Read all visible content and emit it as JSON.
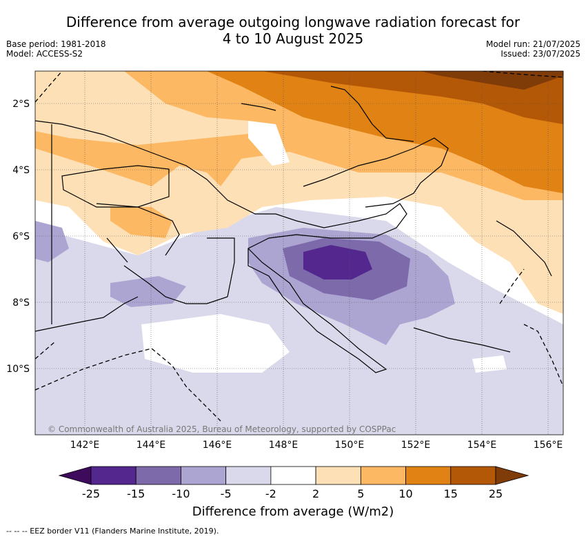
{
  "title_line1": "Difference from average outgoing longwave radiation forecast for",
  "title_line2": "4 to 10 August 2025",
  "base_period": "Base period: 1981-2018",
  "model": "Model: ACCESS-S2",
  "model_run": "Model run: 21/07/2025",
  "issued": "Issued: 23/07/2025",
  "copyright": "© Commonwealth of Australia 2025, Bureau of Meteorology, supported by COSPPac",
  "lat_labels": [
    "2°S",
    "4°S",
    "6°S",
    "8°S",
    "10°S"
  ],
  "lon_labels": [
    "142°E",
    "144°E",
    "146°E",
    "148°E",
    "150°E",
    "152°E",
    "154°E",
    "156°E"
  ],
  "colorbar": {
    "title": "Difference from average (W/m2)",
    "ticks": [
      "-25",
      "-15",
      "-10",
      "-5",
      "-2",
      "2",
      "5",
      "10",
      "15",
      "25"
    ],
    "colors": [
      "#3d0a5c",
      "#54278f",
      "#7d6aaa",
      "#aca5d1",
      "#d9d9eb",
      "#ffffff",
      "#fee0b6",
      "#fdb863",
      "#e08214",
      "#b35806",
      "#7f3b08"
    ]
  },
  "footer": "--  --  -- EEZ border V11 (Flanders Marine Institute, 2019)."
}
